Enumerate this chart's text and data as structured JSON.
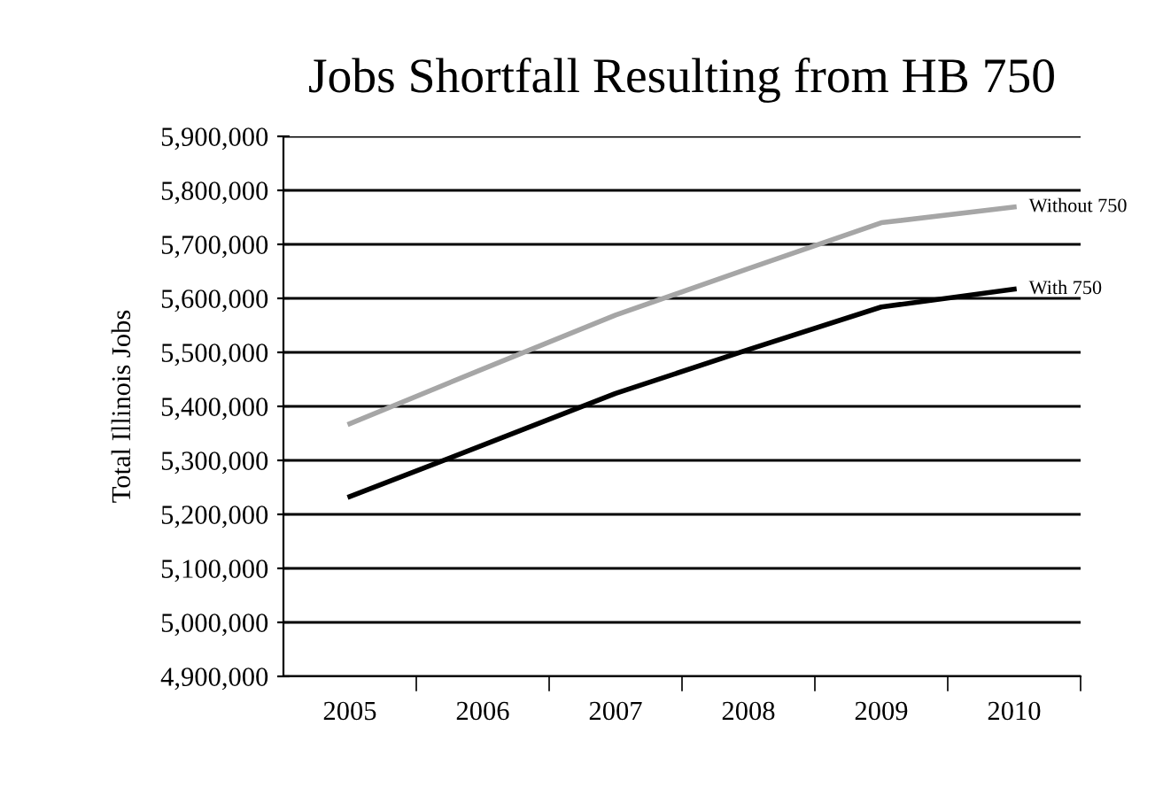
{
  "chart_data": {
    "type": "line",
    "title": "Jobs Shortfall Resulting from HB 750",
    "ylabel": "Total Illinois Jobs",
    "categories": [
      "2005",
      "2006",
      "2007",
      "2008",
      "2009",
      "2010"
    ],
    "series": [
      {
        "name": "Without 750",
        "color": "#a6a6a6",
        "values": [
          5368000,
          5469000,
          5569000,
          5655000,
          5740000,
          5769000
        ]
      },
      {
        "name": "With 750",
        "color": "#000000",
        "values": [
          5233000,
          5328000,
          5424000,
          5505000,
          5584000,
          5617000
        ]
      }
    ],
    "ylim": [
      4900000,
      5900000
    ],
    "yticks": [
      {
        "value": 4900000,
        "label": "4,900,000"
      },
      {
        "value": 5000000,
        "label": "5,000,000"
      },
      {
        "value": 5100000,
        "label": "5,100,000"
      },
      {
        "value": 5200000,
        "label": "5,200,000"
      },
      {
        "value": 5300000,
        "label": "5,300,000"
      },
      {
        "value": 5400000,
        "label": "5,400,000"
      },
      {
        "value": 5500000,
        "label": "5,500,000"
      },
      {
        "value": 5600000,
        "label": "5,600,000"
      },
      {
        "value": 5700000,
        "label": "5,700,000"
      },
      {
        "value": 5800000,
        "label": "5,800,000"
      },
      {
        "value": 5900000,
        "label": "5,900,000"
      }
    ],
    "grid": "y",
    "marker": "none",
    "line_style": "solid"
  }
}
